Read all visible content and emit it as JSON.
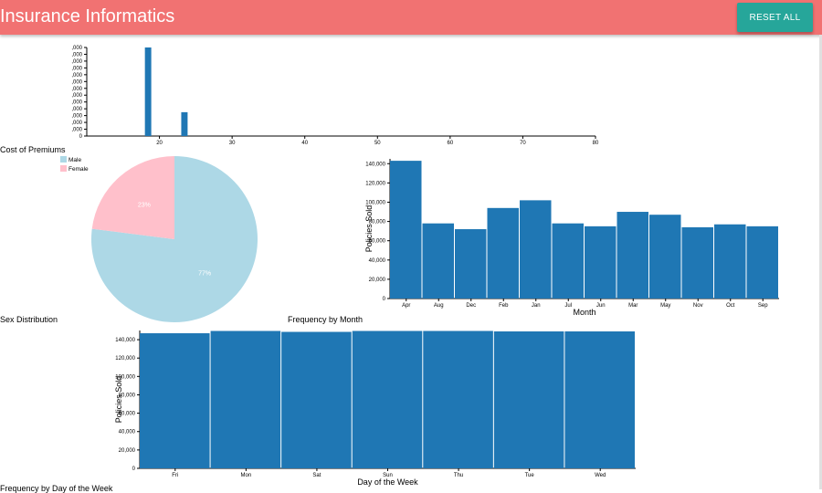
{
  "header": {
    "title": "Insurance Informatics",
    "reset_label": "RESET ALL"
  },
  "colors": {
    "header": "#f17272",
    "reset_button": "#26a69a",
    "bar": "#1f77b4",
    "male": "#add8e6",
    "female": "#ffc0cb"
  },
  "charts": {
    "premiums": {
      "caption": "Cost of Premiums"
    },
    "sex": {
      "caption": "Sex Distribution"
    },
    "month": {
      "caption": "Frequency by Month"
    },
    "weekday": {
      "caption": "Frequency by Day of the Week"
    }
  },
  "chart_data": [
    {
      "id": "premiums",
      "type": "bar",
      "title": "Cost of Premiums",
      "xlim": [
        10,
        80
      ],
      "xticks": [
        "20",
        "30",
        "40",
        "50",
        "60",
        "70",
        "80"
      ],
      "ylim": [
        0,
        130000
      ],
      "yticks": [
        "0",
        ",000",
        ",000",
        ",000",
        ",000",
        ",000",
        ",000",
        ",000",
        ",000",
        ",000",
        ",000",
        ",000",
        ",000",
        ",000"
      ],
      "x": [
        18,
        23
      ],
      "values": [
        130000,
        35000
      ]
    },
    {
      "id": "sex",
      "type": "pie",
      "title": "Sex Distribution",
      "legend": [
        "Male",
        "Female"
      ],
      "slices": [
        {
          "name": "Male",
          "value": 77,
          "label": "77%",
          "color": "#add8e6"
        },
        {
          "name": "Female",
          "value": 23,
          "label": "23%",
          "color": "#ffc0cb"
        }
      ]
    },
    {
      "id": "month",
      "type": "bar",
      "title": "Frequency by Month",
      "xlabel": "Month",
      "ylabel": "Policies Sold",
      "categories": [
        "Apr",
        "Aug",
        "Dec",
        "Feb",
        "Jan",
        "Jul",
        "Jun",
        "Mar",
        "May",
        "Nov",
        "Oct",
        "Sep"
      ],
      "values": [
        143000,
        78000,
        72000,
        94000,
        102000,
        78000,
        75000,
        90000,
        87000,
        74000,
        77000,
        75000
      ],
      "ylim": [
        0,
        145000
      ],
      "yticks": [
        "0",
        "20,000",
        "40,000",
        "60,000",
        "80,000",
        "100,000",
        "120,000",
        "140,000"
      ]
    },
    {
      "id": "weekday",
      "type": "bar",
      "title": "Frequency by Day of the Week",
      "xlabel": "Day of the Week",
      "ylabel": "Policies Sold",
      "categories": [
        "Fri",
        "Mon",
        "Sat",
        "Sun",
        "Thu",
        "Tue",
        "Wed"
      ],
      "values": [
        147000,
        149500,
        148500,
        149500,
        149500,
        149000,
        149000
      ],
      "ylim": [
        0,
        150000
      ],
      "yticks": [
        "0",
        "20,000",
        "40,000",
        "60,000",
        "80,000",
        "100,000",
        "120,000",
        "140,000"
      ]
    }
  ]
}
